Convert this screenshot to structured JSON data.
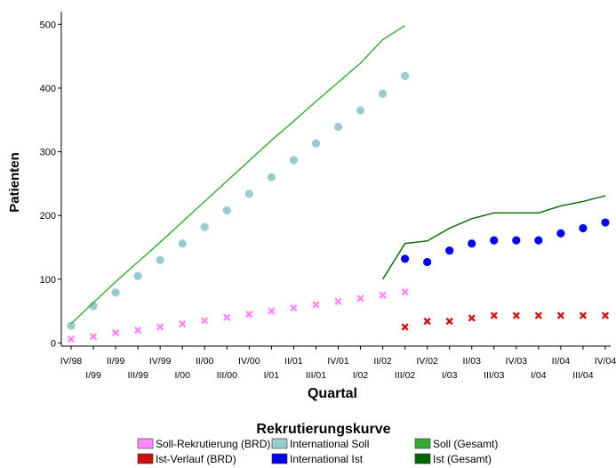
{
  "chart_data": {
    "type": "line",
    "title": "Rekrutierungskurve",
    "xlabel": "Quartal",
    "ylabel": "Patienten",
    "ylim": [
      -5,
      520
    ],
    "yticks": [
      0,
      100,
      200,
      300,
      400,
      500
    ],
    "grid": false,
    "legend_position": "bottom",
    "categories": [
      "IV/98",
      "I/99",
      "II/99",
      "III/99",
      "IV/99",
      "I/00",
      "II/00",
      "III/00",
      "IV/00",
      "I/01",
      "II/01",
      "III/01",
      "IV/01",
      "I/02",
      "II/02",
      "III/02",
      "IV/02",
      "I/03",
      "II/03",
      "III/03",
      "IV/03",
      "I/04",
      "II/04",
      "III/04",
      "IV/04"
    ],
    "series": [
      {
        "name": "Soll-Rekrutierung (BRD)",
        "style": "x-marker",
        "color": "#ff88ff",
        "values": [
          6,
          10,
          16,
          20,
          25,
          30,
          35,
          40,
          45,
          50,
          55,
          60,
          65,
          70,
          75,
          80,
          null,
          null,
          null,
          null,
          null,
          null,
          null,
          null,
          null
        ]
      },
      {
        "name": "International Soll",
        "style": "circle-marker",
        "color": "#99cccc",
        "values": [
          27,
          58,
          79,
          105,
          130,
          156,
          182,
          208,
          234,
          260,
          287,
          313,
          339,
          365,
          391,
          419,
          null,
          null,
          null,
          null,
          null,
          null,
          null,
          null,
          null
        ]
      },
      {
        "name": "Soll (Gesamt)",
        "style": "line",
        "color": "#33aa33",
        "values": [
          30,
          63,
          96,
          127,
          158,
          190,
          222,
          254,
          286,
          318,
          348,
          379,
          409,
          439,
          476,
          498,
          null,
          null,
          null,
          null,
          null,
          null,
          null,
          null,
          null
        ]
      },
      {
        "name": "Ist-Verlauf (BRD)",
        "style": "x-marker",
        "color": "#cc1111",
        "values": [
          null,
          null,
          null,
          null,
          null,
          null,
          null,
          null,
          null,
          null,
          null,
          null,
          null,
          null,
          null,
          25,
          34,
          34,
          39,
          43,
          43,
          43,
          43,
          43,
          43
        ]
      },
      {
        "name": "International Ist",
        "style": "circle-marker",
        "color": "#0000ee",
        "values": [
          null,
          null,
          null,
          null,
          null,
          null,
          null,
          null,
          null,
          null,
          null,
          null,
          null,
          null,
          null,
          132,
          127,
          145,
          156,
          161,
          161,
          161,
          172,
          180,
          189
        ]
      },
      {
        "name": "Ist (Gesamt)",
        "style": "line",
        "color": "#006600",
        "values": [
          null,
          null,
          null,
          null,
          null,
          null,
          null,
          null,
          null,
          null,
          null,
          null,
          null,
          null,
          100,
          156,
          160,
          180,
          195,
          204,
          204,
          204,
          215,
          222,
          231
        ]
      }
    ]
  }
}
